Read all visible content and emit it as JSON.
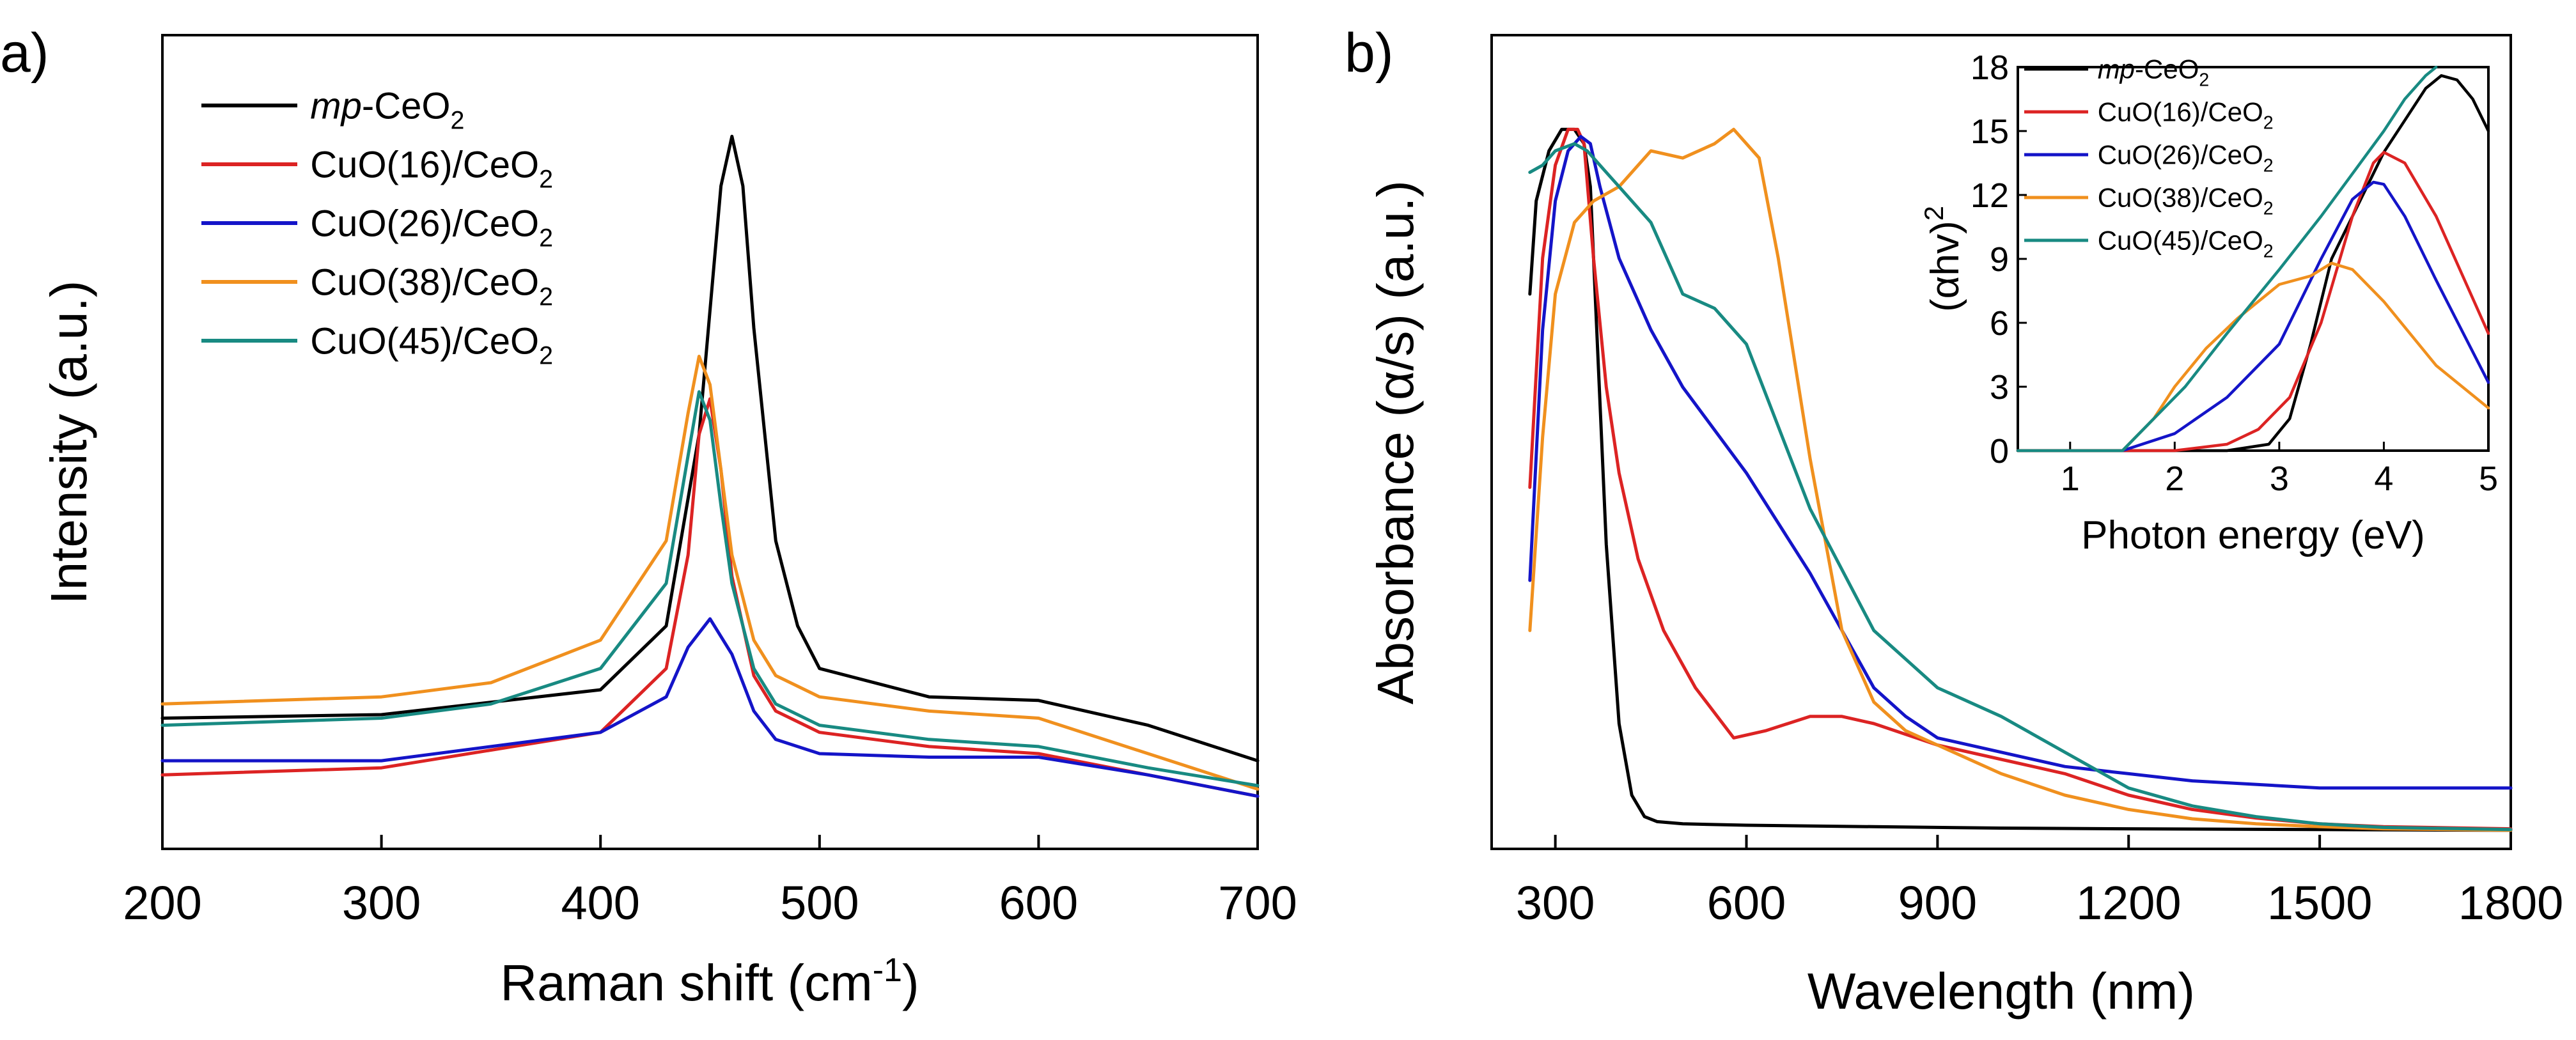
{
  "chart_data": [
    {
      "id": "raman",
      "panel_label": "a)",
      "type": "line",
      "xlabel": "Raman shift (cm",
      "xlabel_sup": "-1",
      "xlabel_end": ")",
      "ylabel": "Intensity (a.u.)",
      "xlim": [
        200,
        700
      ],
      "ylim": [
        0,
        100
      ],
      "xticks": [
        200,
        300,
        400,
        500,
        600,
        700
      ],
      "yticks_labeled": false,
      "legend_position": "top-left",
      "series": [
        {
          "name": "mp-CeO2",
          "legend_prefix": "mp",
          "legend_main": "-CeO",
          "legend_sub": "2",
          "legend_end": "",
          "color": "#000000",
          "x": [
            200,
            300,
            400,
            430,
            445,
            455,
            460,
            465,
            470,
            480,
            490,
            500,
            550,
            600,
            650,
            700
          ],
          "y": [
            15,
            15.5,
            19,
            28,
            55,
            90,
            97,
            90,
            70,
            40,
            28,
            22,
            18,
            17.5,
            14,
            9
          ]
        },
        {
          "name": "CuO(16)/CeO2",
          "legend_prefix": "",
          "legend_main": "CuO(16)/CeO",
          "legend_sub": "2",
          "legend_end": "",
          "color": "#dc2323",
          "x": [
            200,
            300,
            400,
            430,
            440,
            445,
            450,
            455,
            460,
            470,
            480,
            500,
            550,
            600,
            650,
            700
          ],
          "y": [
            7,
            8,
            13,
            22,
            38,
            55,
            60,
            50,
            35,
            21,
            16,
            13,
            11,
            10,
            7,
            4
          ]
        },
        {
          "name": "CuO(26)/CeO2",
          "legend_prefix": "",
          "legend_main": "CuO(26)/CeO",
          "legend_sub": "2",
          "legend_end": "",
          "color": "#1414c8",
          "x": [
            200,
            300,
            400,
            430,
            440,
            450,
            460,
            470,
            480,
            500,
            550,
            600,
            650,
            700
          ],
          "y": [
            9,
            9,
            13,
            18,
            25,
            29,
            24,
            16,
            12,
            10,
            9.5,
            9.5,
            7,
            4
          ]
        },
        {
          "name": "CuO(38)/CeO2",
          "legend_prefix": "",
          "legend_main": "CuO(38)/CeO",
          "legend_sub": "2",
          "legend_end": "",
          "color": "#f0901e",
          "x": [
            200,
            300,
            350,
            400,
            430,
            440,
            445,
            450,
            455,
            460,
            470,
            480,
            500,
            550,
            600,
            650,
            700
          ],
          "y": [
            17,
            18,
            20,
            26,
            40,
            58,
            66,
            62,
            50,
            38,
            26,
            21,
            18,
            16,
            15,
            10,
            5
          ]
        },
        {
          "name": "CuO(45)/CeO2",
          "legend_prefix": "",
          "legend_main": "CuO(45)/CeO",
          "legend_sub": "2",
          "legend_end": "",
          "color": "#188a82",
          "x": [
            200,
            300,
            350,
            400,
            430,
            440,
            445,
            450,
            455,
            460,
            470,
            480,
            500,
            550,
            600,
            650,
            700
          ],
          "y": [
            14,
            15,
            17,
            22,
            34,
            52,
            61,
            57,
            45,
            34,
            22,
            17,
            14,
            12,
            11,
            8,
            5.5
          ]
        }
      ]
    },
    {
      "id": "absorbance",
      "panel_label": "b)",
      "type": "line",
      "xlabel": "Wavelength (nm)",
      "ylabel": "Absorbance (α/s) (a.u.)",
      "xlim": [
        200,
        1800
      ],
      "ylim": [
        0,
        100
      ],
      "xticks": [
        300,
        600,
        900,
        1200,
        1500,
        1800
      ],
      "yticks_labeled": false,
      "series": [
        {
          "name": "mp-CeO2",
          "color": "#000000",
          "x": [
            260,
            270,
            290,
            310,
            330,
            345,
            355,
            365,
            380,
            400,
            420,
            440,
            460,
            500,
            600,
            800,
            1000,
            1200,
            1500,
            1800
          ],
          "y": [
            75,
            88,
            95,
            98,
            98,
            96,
            90,
            70,
            40,
            15,
            5,
            2,
            1.3,
            1,
            0.8,
            0.6,
            0.4,
            0.3,
            0.2,
            0.1
          ]
        },
        {
          "name": "CuO(16)/CeO2",
          "color": "#dc2323",
          "x": [
            260,
            280,
            300,
            320,
            335,
            345,
            360,
            380,
            400,
            430,
            470,
            520,
            580,
            630,
            700,
            750,
            800,
            900,
            1000,
            1100,
            1200,
            1300,
            1400,
            1500,
            1600,
            1800
          ],
          "y": [
            48,
            80,
            93,
            98,
            98,
            96,
            80,
            62,
            50,
            38,
            28,
            20,
            13,
            14,
            16,
            16,
            15,
            12,
            10,
            8,
            5,
            3,
            1.8,
            1,
            0.6,
            0.3
          ]
        },
        {
          "name": "CuO(26)/CeO2",
          "color": "#1414c8",
          "x": [
            260,
            280,
            300,
            320,
            340,
            355,
            370,
            400,
            450,
            500,
            600,
            700,
            800,
            850,
            900,
            950,
            1000,
            1100,
            1200,
            1300,
            1500,
            1800
          ],
          "y": [
            35,
            70,
            88,
            95,
            97,
            96,
            90,
            80,
            70,
            62,
            50,
            36,
            20,
            16,
            13,
            12,
            11,
            9,
            8,
            7,
            6,
            6
          ]
        },
        {
          "name": "CuO(38)/CeO2",
          "color": "#f0901e",
          "x": [
            260,
            280,
            300,
            330,
            360,
            400,
            450,
            500,
            550,
            580,
            620,
            650,
            700,
            750,
            800,
            850,
            900,
            1000,
            1100,
            1200,
            1300,
            1400,
            1500,
            1600,
            1800
          ],
          "y": [
            28,
            55,
            75,
            85,
            88,
            90,
            95,
            94,
            96,
            98,
            94,
            80,
            52,
            28,
            18,
            14,
            12,
            8,
            5,
            3,
            1.7,
            1,
            0.6,
            0.3,
            0.1
          ]
        },
        {
          "name": "CuO(45)/CeO2",
          "color": "#188a82",
          "x": [
            260,
            280,
            300,
            330,
            350,
            380,
            400,
            450,
            500,
            550,
            600,
            700,
            800,
            850,
            900,
            1000,
            1100,
            1200,
            1300,
            1400,
            1500,
            1600,
            1800
          ],
          "y": [
            92,
            93,
            95,
            96,
            95,
            92,
            90,
            85,
            75,
            73,
            68,
            45,
            28,
            24,
            20,
            16,
            11,
            6,
            3.5,
            2,
            1,
            0.5,
            0.2
          ]
        }
      ],
      "inset": {
        "type": "line",
        "xlabel": "Photon energy (eV)",
        "ylabel": "(αhv)",
        "ylabel_sup": "2",
        "xlim": [
          0.5,
          5
        ],
        "ylim": [
          0,
          18
        ],
        "xticks": [
          1,
          2,
          3,
          4,
          5
        ],
        "yticks": [
          0,
          3,
          6,
          9,
          12,
          15,
          18
        ],
        "legend_position": "top-left",
        "series": [
          {
            "name": "mp-CeO2",
            "legend_prefix": "mp",
            "legend_main": "-CeO",
            "legend_sub": "2",
            "legend_end": "",
            "color": "#000000",
            "x": [
              0.5,
              2.5,
              2.9,
              3.1,
              3.3,
              3.5,
              3.8,
              4.0,
              4.2,
              4.4,
              4.55,
              4.7,
              4.85,
              5.0
            ],
            "y": [
              0,
              0,
              0.3,
              1.5,
              5,
              9,
              12,
              14,
              15.5,
              17,
              17.6,
              17.4,
              16.5,
              15
            ]
          },
          {
            "name": "CuO(16)/CeO2",
            "legend_prefix": "",
            "legend_main": "CuO(16)/CeO",
            "legend_sub": "2",
            "legend_end": "",
            "color": "#dc2323",
            "x": [
              0.5,
              2.0,
              2.5,
              2.8,
              3.1,
              3.4,
              3.7,
              3.9,
              4.0,
              4.2,
              4.5,
              5.0
            ],
            "y": [
              0,
              0,
              0.3,
              1,
              2.5,
              6,
              11,
              13.5,
              14,
              13.5,
              11,
              5.5
            ]
          },
          {
            "name": "CuO(26)/CeO2",
            "legend_prefix": "",
            "legend_main": "CuO(26)/CeO",
            "legend_sub": "2",
            "legend_end": "",
            "color": "#1414c8",
            "x": [
              0.5,
              1.5,
              2.0,
              2.5,
              3.0,
              3.4,
              3.7,
              3.9,
              4.0,
              4.2,
              4.5,
              5.0
            ],
            "y": [
              0,
              0,
              0.8,
              2.5,
              5,
              9,
              11.8,
              12.6,
              12.5,
              11,
              8,
              3.2
            ]
          },
          {
            "name": "CuO(38)/CeO2",
            "legend_prefix": "",
            "legend_main": "CuO(38)/CeO",
            "legend_sub": "2",
            "legend_end": "",
            "color": "#f0901e",
            "x": [
              0.5,
              1.5,
              1.8,
              2.0,
              2.3,
              2.6,
              3.0,
              3.3,
              3.5,
              3.7,
              4.0,
              4.5,
              5.0
            ],
            "y": [
              0,
              0,
              1.5,
              3,
              4.8,
              6.2,
              7.8,
              8.2,
              8.8,
              8.5,
              7,
              4,
              2
            ]
          },
          {
            "name": "CuO(45)/CeO2",
            "legend_prefix": "",
            "legend_main": "CuO(45)/CeO",
            "legend_sub": "2",
            "legend_end": "",
            "color": "#188a82",
            "x": [
              0.5,
              1.5,
              1.8,
              2.1,
              2.5,
              3.0,
              3.4,
              3.7,
              4.0,
              4.2,
              4.4,
              4.5
            ],
            "y": [
              0,
              0,
              1.5,
              3,
              5.5,
              8.5,
              11,
              13,
              15,
              16.5,
              17.6,
              18
            ]
          }
        ]
      }
    }
  ]
}
